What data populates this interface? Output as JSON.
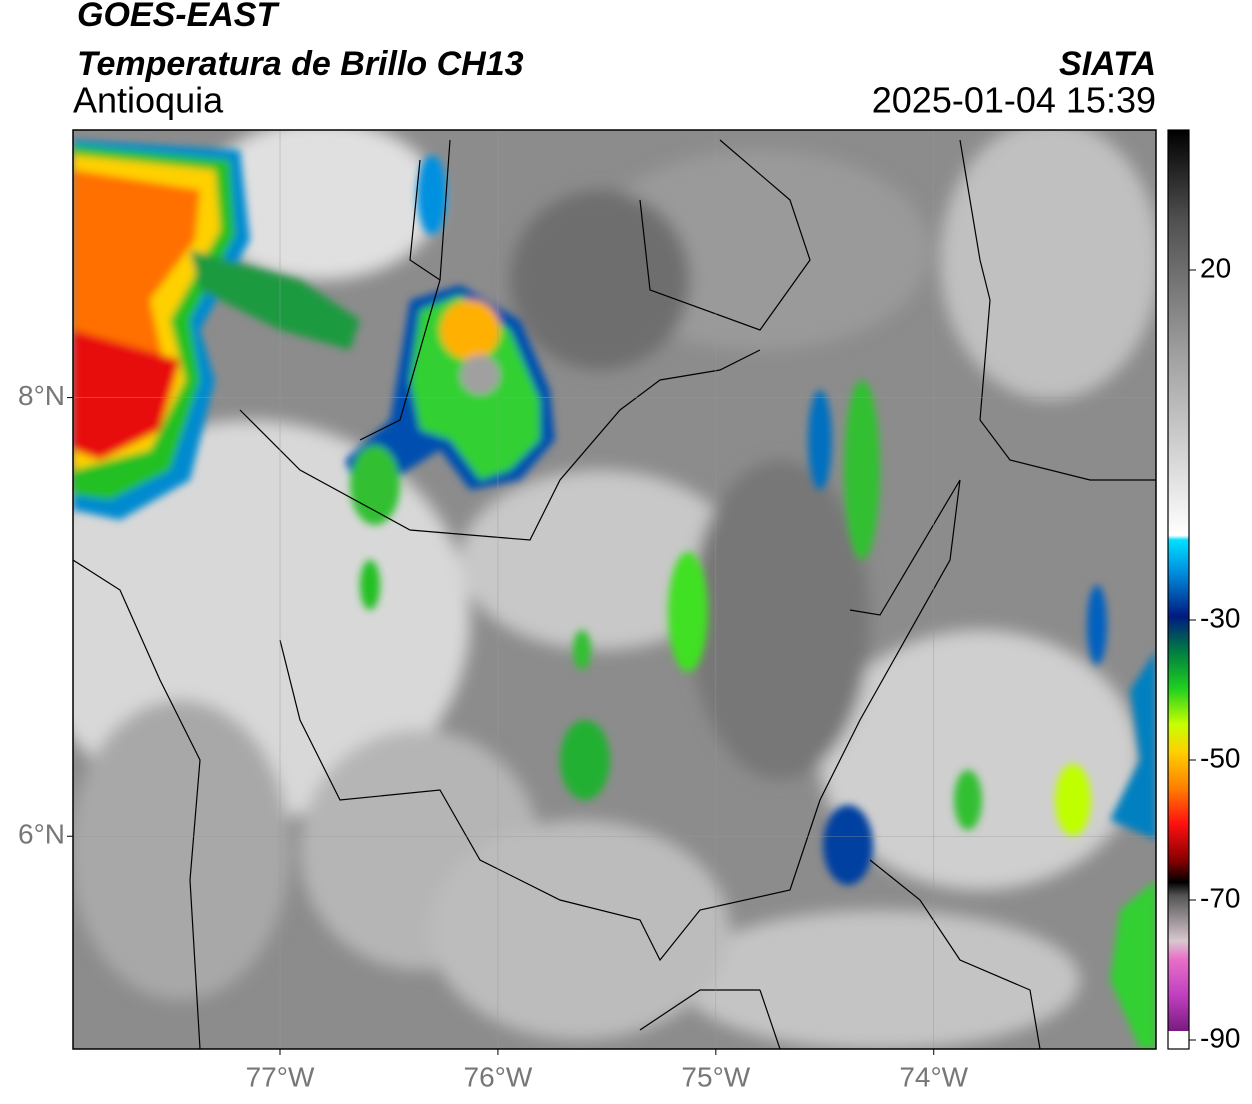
{
  "header": {
    "title": "GOES-EAST",
    "subtitle": "Temperatura de Brillo CH13",
    "region": "Antioquia",
    "source": "SIATA",
    "datetime": "2025-01-04 15:39"
  },
  "map": {
    "xlim": [
      -77.95,
      -72.98
    ],
    "ylim": [
      5.03,
      9.22
    ],
    "xticks": [
      {
        "value": -77,
        "label": "77°W"
      },
      {
        "value": -76,
        "label": "76°W"
      },
      {
        "value": -75,
        "label": "75°W"
      },
      {
        "value": -74,
        "label": "74°W"
      }
    ],
    "yticks": [
      {
        "value": 8,
        "label": "8°N"
      },
      {
        "value": 6,
        "label": "6°N"
      }
    ],
    "grid": true
  },
  "colorbar": {
    "lim": [
      -90,
      40
    ],
    "ticks": [
      20,
      -30,
      -50,
      -70,
      -90
    ]
  }
}
